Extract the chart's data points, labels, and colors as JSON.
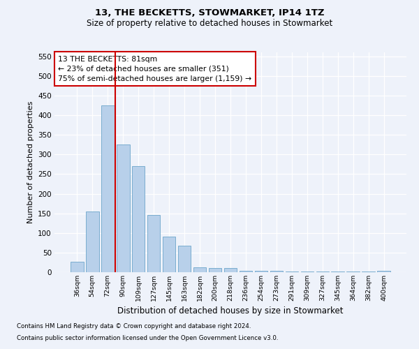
{
  "title1": "13, THE BECKETTS, STOWMARKET, IP14 1TZ",
  "title2": "Size of property relative to detached houses in Stowmarket",
  "xlabel": "Distribution of detached houses by size in Stowmarket",
  "ylabel": "Number of detached properties",
  "categories": [
    "36sqm",
    "54sqm",
    "72sqm",
    "90sqm",
    "109sqm",
    "127sqm",
    "145sqm",
    "163sqm",
    "182sqm",
    "200sqm",
    "218sqm",
    "236sqm",
    "254sqm",
    "273sqm",
    "291sqm",
    "309sqm",
    "327sqm",
    "345sqm",
    "364sqm",
    "382sqm",
    "400sqm"
  ],
  "values": [
    27,
    155,
    425,
    325,
    270,
    145,
    90,
    68,
    12,
    10,
    10,
    4,
    3,
    4,
    2,
    1,
    1,
    1,
    1,
    1,
    3
  ],
  "bar_color": "#b8d0ea",
  "bar_edge_color": "#7aadcf",
  "red_line_index": 2,
  "annotation_line1": "13 THE BECKETTS: 81sqm",
  "annotation_line2": "← 23% of detached houses are smaller (351)",
  "annotation_line3": "75% of semi-detached houses are larger (1,159) →",
  "ylim": [
    0,
    560
  ],
  "yticks": [
    0,
    50,
    100,
    150,
    200,
    250,
    300,
    350,
    400,
    450,
    500,
    550
  ],
  "footer1": "Contains HM Land Registry data © Crown copyright and database right 2024.",
  "footer2": "Contains public sector information licensed under the Open Government Licence v3.0.",
  "bg_color": "#eef2fa",
  "grid_color": "#ffffff"
}
